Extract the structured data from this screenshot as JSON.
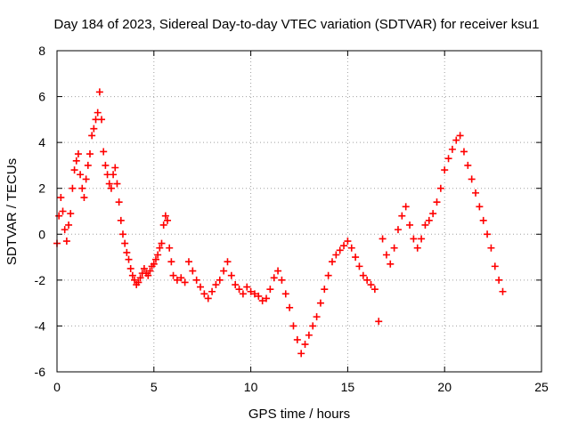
{
  "chart_data": {
    "type": "scatter",
    "title": "Day 184 of 2023, Sidereal Day-to-day VTEC variation (SDTVAR) for receiver ksu1",
    "xlabel": "GPS time / hours",
    "ylabel": "SDTVAR / TECUs",
    "xlim": [
      0,
      25
    ],
    "ylim": [
      -6,
      8
    ],
    "xticks": [
      0,
      5,
      10,
      15,
      20,
      25
    ],
    "yticks": [
      -6,
      -4,
      -2,
      0,
      2,
      4,
      6,
      8
    ],
    "grid": true,
    "marker": "plus",
    "series": [
      {
        "name": "SDTVAR",
        "color": "#ff0000",
        "x": [
          0.0,
          0.1,
          0.2,
          0.3,
          0.4,
          0.5,
          0.6,
          0.7,
          0.8,
          0.9,
          1.0,
          1.1,
          1.2,
          1.3,
          1.4,
          1.5,
          1.6,
          1.7,
          1.8,
          1.9,
          2.0,
          2.1,
          2.2,
          2.3,
          2.4,
          2.5,
          2.6,
          2.7,
          2.8,
          2.9,
          3.0,
          3.1,
          3.2,
          3.3,
          3.4,
          3.5,
          3.6,
          3.7,
          3.8,
          3.9,
          4.0,
          4.1,
          4.2,
          4.3,
          4.4,
          4.5,
          4.6,
          4.7,
          4.8,
          4.9,
          5.0,
          5.1,
          5.2,
          5.3,
          5.4,
          5.5,
          5.6,
          5.7,
          5.8,
          5.9,
          6.0,
          6.2,
          6.4,
          6.6,
          6.8,
          7.0,
          7.2,
          7.4,
          7.6,
          7.8,
          8.0,
          8.2,
          8.4,
          8.6,
          8.8,
          9.0,
          9.2,
          9.4,
          9.6,
          9.8,
          10.0,
          10.2,
          10.4,
          10.6,
          10.8,
          11.0,
          11.2,
          11.4,
          11.6,
          11.8,
          12.0,
          12.2,
          12.4,
          12.6,
          12.8,
          13.0,
          13.2,
          13.4,
          13.6,
          13.8,
          14.0,
          14.2,
          14.4,
          14.6,
          14.8,
          15.0,
          15.2,
          15.4,
          15.6,
          15.8,
          16.0,
          16.2,
          16.4,
          16.6,
          16.8,
          17.0,
          17.2,
          17.4,
          17.6,
          17.8,
          18.0,
          18.2,
          18.4,
          18.6,
          18.8,
          19.0,
          19.2,
          19.4,
          19.6,
          19.8,
          20.0,
          20.2,
          20.4,
          20.6,
          20.8,
          21.0,
          21.2,
          21.4,
          21.6,
          21.8,
          22.0,
          22.2,
          22.4,
          22.6,
          22.8,
          23.0
        ],
        "y": [
          -0.4,
          0.8,
          1.6,
          1.0,
          0.2,
          -0.3,
          0.4,
          0.9,
          2.0,
          2.8,
          3.2,
          3.5,
          2.6,
          2.0,
          1.6,
          2.4,
          3.0,
          3.5,
          4.3,
          4.6,
          5.0,
          5.3,
          6.2,
          5.0,
          3.6,
          3.0,
          2.6,
          2.2,
          2.0,
          2.6,
          2.9,
          2.2,
          1.4,
          0.6,
          0.0,
          -0.4,
          -0.8,
          -1.1,
          -1.5,
          -1.8,
          -2.0,
          -2.2,
          -2.1,
          -1.9,
          -1.7,
          -1.5,
          -1.7,
          -1.8,
          -1.6,
          -1.4,
          -1.3,
          -1.1,
          -0.9,
          -0.6,
          -0.4,
          0.4,
          0.8,
          0.6,
          -0.6,
          -1.2,
          -1.8,
          -2.0,
          -1.9,
          -2.1,
          -1.2,
          -1.6,
          -2.0,
          -2.3,
          -2.6,
          -2.8,
          -2.5,
          -2.2,
          -2.0,
          -1.6,
          -1.2,
          -1.8,
          -2.2,
          -2.4,
          -2.6,
          -2.3,
          -2.5,
          -2.6,
          -2.7,
          -2.9,
          -2.8,
          -2.4,
          -1.9,
          -1.6,
          -2.0,
          -2.6,
          -3.2,
          -4.0,
          -4.6,
          -5.2,
          -4.8,
          -4.4,
          -4.0,
          -3.6,
          -3.0,
          -2.4,
          -1.8,
          -1.2,
          -0.9,
          -0.7,
          -0.5,
          -0.3,
          -0.6,
          -1.0,
          -1.4,
          -1.8,
          -2.0,
          -2.2,
          -2.4,
          -3.8,
          -0.2,
          -0.9,
          -1.3,
          -0.6,
          0.2,
          0.8,
          1.2,
          0.4,
          -0.2,
          -0.6,
          -0.2,
          0.4,
          0.6,
          0.9,
          1.4,
          2.0,
          2.8,
          3.3,
          3.7,
          4.1,
          4.3,
          3.6,
          3.0,
          2.4,
          1.8,
          1.2,
          0.6,
          0.0,
          -0.6,
          -1.4,
          -2.0,
          -2.5
        ]
      }
    ]
  }
}
